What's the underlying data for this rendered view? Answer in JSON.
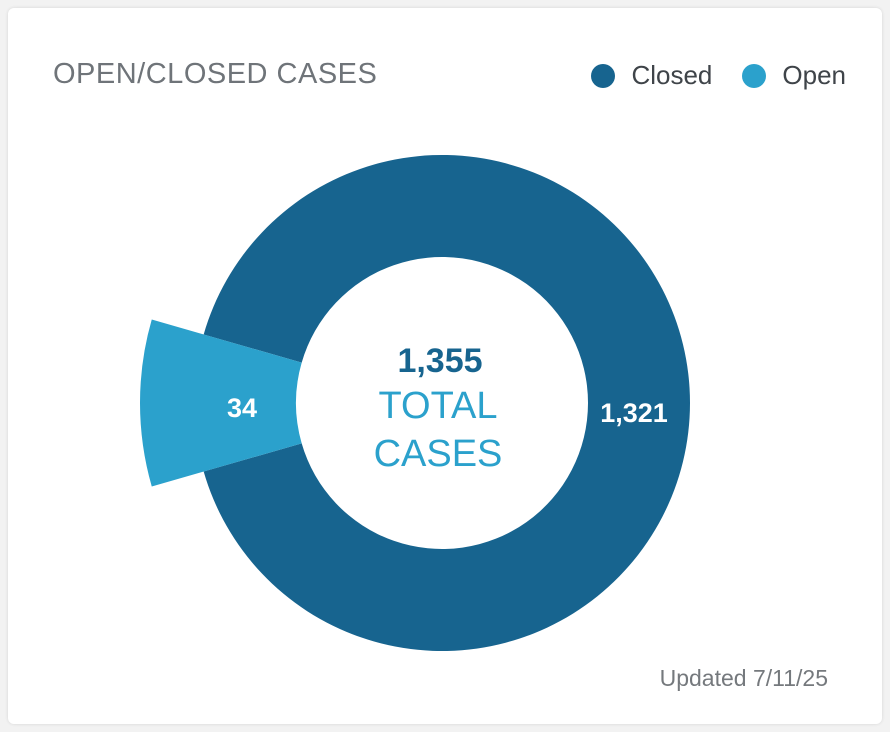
{
  "card": {
    "title": "OPEN/CLOSED CASES",
    "updated": "Updated 7/11/25"
  },
  "colors": {
    "closed": "#17648f",
    "open": "#2ba1cc",
    "center_text_total": "#17648f",
    "center_text_label": "#2ba1cc"
  },
  "chart_data": {
    "type": "pie",
    "title": "OPEN/CLOSED CASES",
    "series": [
      {
        "name": "Closed",
        "value": 1321,
        "label": "1,321",
        "color": "#17648f"
      },
      {
        "name": "Open",
        "value": 34,
        "label": "34",
        "color": "#2ba1cc"
      }
    ],
    "total": 1355,
    "total_label": "1,355",
    "center_text": [
      "TOTAL",
      "CASES"
    ],
    "legend": [
      "Closed",
      "Open"
    ],
    "legend_position": "top-right",
    "donut": true
  }
}
